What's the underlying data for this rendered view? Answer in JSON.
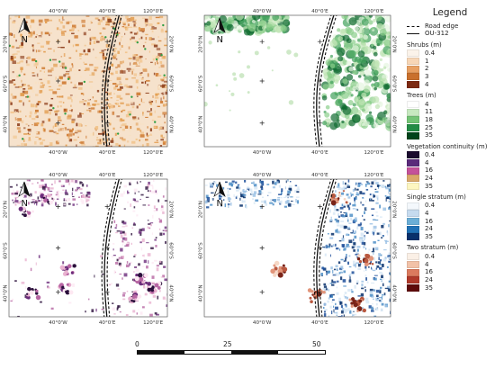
{
  "panels": [
    {
      "id": "shrubs",
      "palette": [
        "#f8e1c4",
        "#f1c38b",
        "#e39f53",
        "#cf7b33",
        "#8e3f1d"
      ],
      "density": "dense"
    },
    {
      "id": "trees",
      "palette": [
        "#e6f5df",
        "#bfe4b4",
        "#8cce8b",
        "#41a15b",
        "#0f6b30"
      ],
      "density": "trees"
    },
    {
      "id": "continuity",
      "palette": [
        "#fde8f2",
        "#e9b2d0",
        "#b766a3",
        "#6b2c7a",
        "#2a0f3b"
      ],
      "density": "patchy"
    },
    {
      "id": "strata",
      "palette": [
        "#d8e7f5",
        "#9fc3e5",
        "#4f8fc7",
        "#1d4f9a",
        "#08306b"
      ],
      "palette2": [
        "#f6d8c6",
        "#e2957a",
        "#b9583f",
        "#7a2418"
      ],
      "density": "strata"
    }
  ],
  "map_labels": {
    "lon": [
      "40°0'W",
      "40°0'E",
      "120°0'E"
    ],
    "lat_left": [
      "20°0'N",
      "60°0'S",
      "40°0'N"
    ],
    "lat_right": [
      "20°0'N",
      "60°0'S",
      "40°0'N"
    ],
    "north": "N"
  },
  "legend": {
    "title": "Legend",
    "lines": [
      {
        "label": "Road edge",
        "style": "dashed"
      },
      {
        "label": "OU-312",
        "style": "solid"
      }
    ],
    "sections": [
      {
        "title": "Shrubs (m)",
        "items": [
          {
            "label": "0.4",
            "color": "#fbf3ea"
          },
          {
            "label": "1",
            "color": "#f7d6b6"
          },
          {
            "label": "2",
            "color": "#e8a063"
          },
          {
            "label": "3",
            "color": "#c9702d"
          },
          {
            "label": "4",
            "color": "#7d2a12"
          }
        ]
      },
      {
        "title": "Trees (m)",
        "items": [
          {
            "label": "4",
            "color": "#ffffff"
          },
          {
            "label": "11",
            "color": "#c7e9c0"
          },
          {
            "label": "18",
            "color": "#74c476"
          },
          {
            "label": "25",
            "color": "#238b45"
          },
          {
            "label": "35",
            "color": "#00441b"
          }
        ]
      },
      {
        "title": "Vegetation continuity (m)",
        "items": [
          {
            "label": "0.4",
            "color": "#1a0a2e"
          },
          {
            "label": "4",
            "color": "#5a2a7a"
          },
          {
            "label": "16",
            "color": "#c4529a"
          },
          {
            "label": "24",
            "color": "#d9a86a"
          },
          {
            "label": "35",
            "color": "#fdf6c0"
          }
        ]
      },
      {
        "title": "Single stratum (m)",
        "items": [
          {
            "label": "0.4",
            "color": "#f4f8fc"
          },
          {
            "label": "4",
            "color": "#c6dbef"
          },
          {
            "label": "16",
            "color": "#6baed6"
          },
          {
            "label": "24",
            "color": "#2171b5"
          },
          {
            "label": "35",
            "color": "#08306b"
          }
        ]
      },
      {
        "title": "Two stratum (m)",
        "items": [
          {
            "label": "0.4",
            "color": "#fbf0e6"
          },
          {
            "label": "4",
            "color": "#f2c2a8"
          },
          {
            "label": "16",
            "color": "#db7a5e"
          },
          {
            "label": "24",
            "color": "#b0392a"
          },
          {
            "label": "35",
            "color": "#5e0a0a"
          }
        ]
      }
    ]
  },
  "scale": {
    "labels": [
      "0",
      "25",
      "50 m"
    ]
  }
}
